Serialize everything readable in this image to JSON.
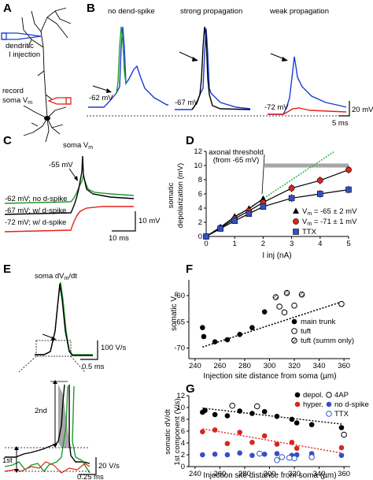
{
  "panels": {
    "A": {
      "label": "A",
      "dendritic_injection": [
        "dendritic",
        "I injection"
      ],
      "record_soma": "record",
      "soma_vm": [
        "soma V",
        "m"
      ]
    },
    "B": {
      "label": "B",
      "titles": [
        "no dend-spike",
        "strong propagation",
        "weak propagation"
      ],
      "baselines": [
        "-62 mV",
        "-67 mV",
        "-72 mV"
      ],
      "scale_v": "20 mV",
      "scale_t": "5 ms"
    },
    "C": {
      "label": "C",
      "title": [
        "soma V",
        "m"
      ],
      "peak_label": "-55 mV",
      "traces": [
        "-62 mV; no d-spike",
        "-67 mV; w/ d-spike",
        "-72 mV; w/ d-spike"
      ],
      "scale_v": "10 mV",
      "scale_t": "10 ms"
    },
    "E": {
      "label": "E",
      "title": "soma dV",
      "title_sub": "m",
      "title_end": "/dt",
      "scale_v": "100 V/s",
      "scale_t": "0.5 ms",
      "inset_scale_v": "20 V/s",
      "inset_scale_t": "0.25 ms",
      "component_1": "1st",
      "component_2": "2nd"
    }
  },
  "colors": {
    "no_dspike": "#1a3bd6",
    "strong": "#000000",
    "weak": "#e3231b",
    "green": "#1e9a2c",
    "green_fit": "#22b53b",
    "threshold": "#a6a6a6",
    "blue": "#3350c8",
    "red": "#d9261e"
  },
  "chart_data": [
    {
      "panel": "D",
      "label": "D",
      "type": "line",
      "xlabel": "I inj (nA)",
      "ylabel": [
        "somatic",
        "depolarization (mV)"
      ],
      "xlim": [
        0,
        5
      ],
      "ylim": [
        0,
        12
      ],
      "xticks": [
        "0",
        "1",
        "2",
        "3",
        "4",
        "5"
      ],
      "yticks": [
        "0",
        "2",
        "4",
        "6",
        "8",
        "10",
        "12"
      ],
      "annotation": [
        "axonal threshold",
        "(from -65 mV)"
      ],
      "threshold": 10,
      "series": [
        {
          "name": "V",
          "name_sub": "m",
          "name_rest": " = -65 ± 2 mV",
          "marker": "triangle",
          "x": [
            0,
            0.5,
            1,
            1.5,
            2
          ],
          "y": [
            0,
            1.3,
            2.8,
            3.9,
            5.3
          ]
        },
        {
          "name": "V",
          "name_sub": "m",
          "name_rest": " = -71 ± 1 mV",
          "marker": "circle",
          "x": [
            0,
            0.5,
            1,
            1.5,
            2,
            3,
            4,
            5
          ],
          "y": [
            0,
            1.2,
            2.5,
            3.6,
            4.8,
            6.8,
            7.9,
            9.4
          ]
        },
        {
          "name": "TTX",
          "marker": "square",
          "x": [
            0,
            0.5,
            1,
            1.5,
            2,
            3,
            4,
            5
          ],
          "y": [
            0,
            1.1,
            2.2,
            3.2,
            4.2,
            5.4,
            6.0,
            6.6
          ]
        }
      ],
      "fit_line": {
        "x": [
          0,
          5
        ],
        "y": [
          0,
          13.3
        ]
      }
    },
    {
      "panel": "F",
      "label": "F",
      "type": "scatter",
      "xlabel": "Injection site distance from soma (µm)",
      "ylabel": [
        "somatic V",
        "m"
      ],
      "xlim": [
        235,
        365
      ],
      "ylim": [
        -72,
        -57
      ],
      "xticks": [
        "240",
        "260",
        "280",
        "300",
        "320",
        "340",
        "360"
      ],
      "yticks": [
        "-70",
        "-65",
        "-60"
      ],
      "legend": [
        "main trunk",
        "tuft",
        "tuft (summ only)"
      ],
      "series": [
        {
          "name": "main trunk",
          "marker": "filled",
          "x": [
            246,
            247,
            256,
            266,
            276,
            286,
            296
          ],
          "y": [
            -66.1,
            -67.8,
            -68.8,
            -68.4,
            -67.4,
            -66.1,
            -63.1
          ]
        },
        {
          "name": "tuft",
          "marker": "open",
          "x": [
            308,
            312,
            320,
            358
          ],
          "y": [
            -62.1,
            -63.2,
            -61.9,
            -61.6
          ]
        },
        {
          "name": "tuft (summ only)",
          "marker": "hatched",
          "x": [
            305,
            314,
            326
          ],
          "y": [
            -60.3,
            -59.5,
            -59.8
          ]
        }
      ],
      "fit_line": {
        "x": [
          246,
          358
        ],
        "y": [
          -69.8,
          -61.2
        ]
      }
    },
    {
      "panel": "G",
      "label": "G",
      "type": "scatter",
      "xlabel": "Injection site distance from soma (µm)",
      "ylabel": [
        "somatic dV/dt",
        "1st component (V/s)"
      ],
      "xlim": [
        235,
        365
      ],
      "ylim": [
        0,
        12
      ],
      "xticks": [
        "240",
        "260",
        "280",
        "300",
        "320",
        "340",
        "360"
      ],
      "yticks": [
        "0",
        "2",
        "4",
        "6",
        "8",
        "10",
        "12"
      ],
      "legend": [
        "depol.",
        "hyper.",
        "4AP",
        "no d-spike",
        "TTX"
      ],
      "series": [
        {
          "name": "depol.",
          "marker": "filled-black",
          "x": [
            246,
            248,
            256,
            266,
            276,
            286,
            296,
            306,
            318,
            322,
            334,
            358
          ],
          "y": [
            9.2,
            9.5,
            8.8,
            8.6,
            9.4,
            9.0,
            9.3,
            8.5,
            8.0,
            7.4,
            7.1,
            6.6
          ]
        },
        {
          "name": "4AP",
          "marker": "open-black",
          "x": [
            270,
            290,
            360
          ],
          "y": [
            10.3,
            10.2,
            5.4
          ]
        },
        {
          "name": "hyper.",
          "marker": "filled-red",
          "x": [
            246,
            256,
            266,
            276,
            286,
            296,
            306,
            318,
            322,
            334,
            358
          ],
          "y": [
            5.9,
            6.2,
            3.9,
            5.8,
            4.1,
            5.2,
            3.8,
            4.1,
            3.1,
            2.0,
            3.2
          ]
        },
        {
          "name": "no d-spike",
          "marker": "filled-blue",
          "x": [
            246,
            256,
            266,
            276,
            286,
            296,
            306,
            318,
            322,
            334,
            358
          ],
          "y": [
            2.0,
            2.1,
            2.0,
            2.3,
            1.9,
            2.1,
            2.2,
            1.9,
            2.0,
            2.2,
            1.9
          ]
        },
        {
          "name": "TTX",
          "marker": "open-blue",
          "x": [
            292,
            306,
            310,
            316,
            320,
            334
          ],
          "y": [
            2.2,
            1.1,
            1.6,
            1.5,
            1.4,
            1.6
          ]
        }
      ],
      "fit_lines": [
        {
          "series": "depol.",
          "x": [
            246,
            358
          ],
          "y": [
            9.9,
            7.2
          ]
        },
        {
          "series": "hyper.",
          "x": [
            246,
            358
          ],
          "y": [
            6.4,
            2.3
          ]
        }
      ]
    }
  ]
}
